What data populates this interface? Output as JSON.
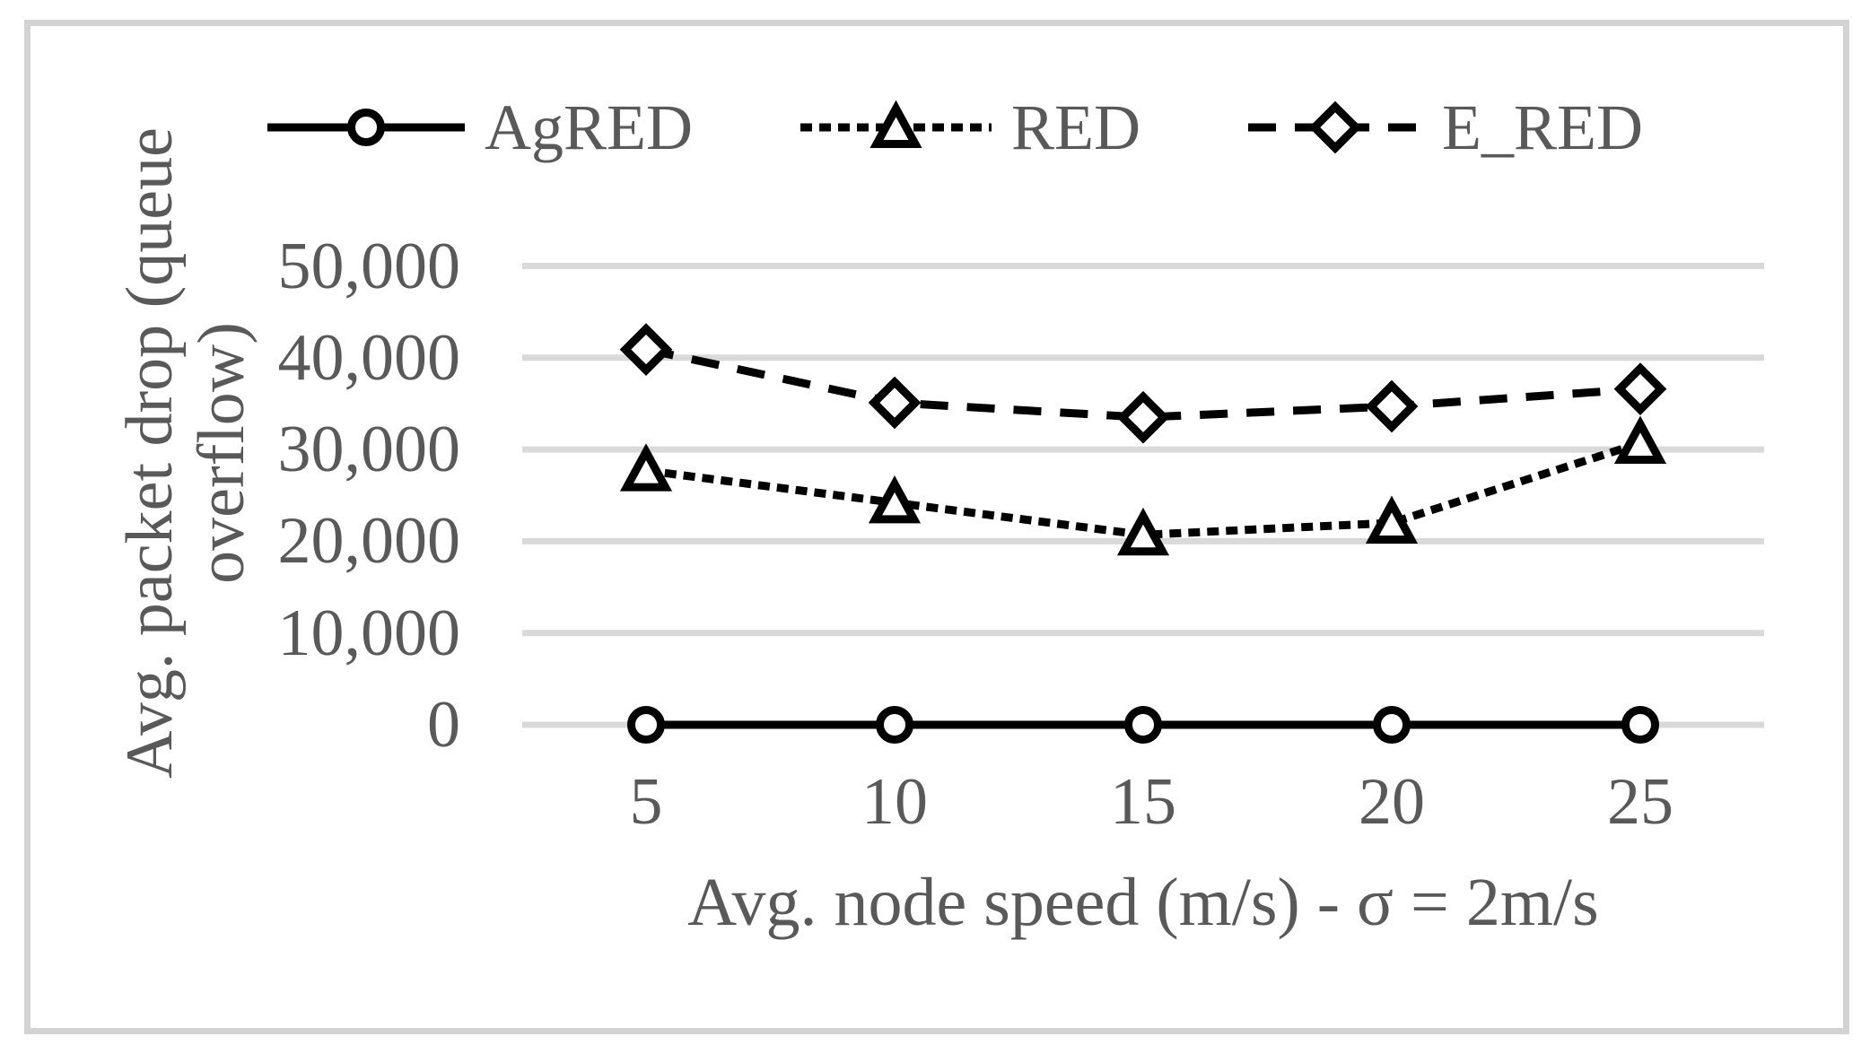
{
  "chart_data": {
    "type": "line",
    "title": "",
    "xlabel": "Avg. node speed (m/s) - σ = 2m/s",
    "ylabel": "Avg. packet drop (queue overflow)",
    "ylabel_lines": [
      "Avg. packet drop (queue",
      "overflow)"
    ],
    "x": [
      5,
      10,
      15,
      20,
      25
    ],
    "xtick_labels": [
      "5",
      "10",
      "15",
      "20",
      "25"
    ],
    "ylim": [
      0,
      50000
    ],
    "ytick_step": 10000,
    "ytick_labels": [
      "0",
      "10,000",
      "20,000",
      "30,000",
      "40,000",
      "50,000"
    ],
    "grid": "horizontal",
    "legend_position": "top",
    "series": [
      {
        "name": "AgRED",
        "marker": "circle",
        "line": "solid",
        "values": [
          0,
          0,
          0,
          0,
          0
        ]
      },
      {
        "name": "RED",
        "marker": "triangle",
        "line": "dotted",
        "values": [
          27700,
          24200,
          20700,
          22000,
          30700
        ]
      },
      {
        "name": "E_RED",
        "marker": "diamond",
        "line": "dashed",
        "values": [
          40900,
          35100,
          33500,
          34700,
          36600
        ]
      }
    ],
    "colors": {
      "series_stroke": "#000000",
      "marker_fill": "#ffffff",
      "text": "#595959",
      "gridline": "#d9d9d9",
      "border": "#d3d3d3",
      "background": "#ffffff"
    }
  }
}
